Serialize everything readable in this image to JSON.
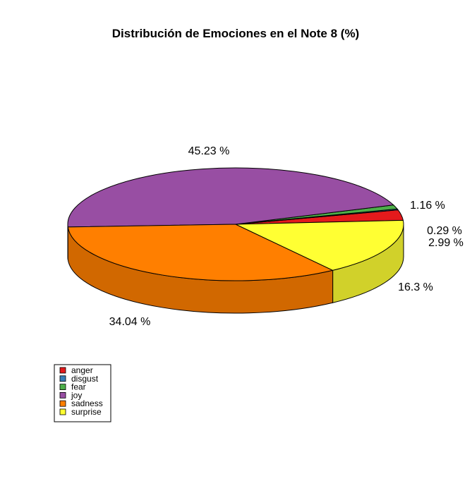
{
  "chart_data": {
    "type": "pie",
    "style": "3d",
    "title": "Distribución de Emociones en el Note 8 (%)",
    "slices": [
      {
        "label": "anger",
        "value": 2.99,
        "display": "2.99 %",
        "color": "#e41a1c"
      },
      {
        "label": "disgust",
        "value": 0.29,
        "display": "0.29 %",
        "color": "#377eb8"
      },
      {
        "label": "fear",
        "value": 1.16,
        "display": "1.16 %",
        "color": "#4daf4a"
      },
      {
        "label": "joy",
        "value": 45.23,
        "display": "45.23 %",
        "color": "#984ea3"
      },
      {
        "label": "sadness",
        "value": 34.04,
        "display": "34.04 %",
        "color": "#ff7f00"
      },
      {
        "label": "surprise",
        "value": 16.3,
        "display": "16.3 %",
        "color": "#ffff33"
      }
    ],
    "legend": {
      "placement": "bottom-left",
      "items": [
        "anger",
        "disgust",
        "fear",
        "joy",
        "sadness",
        "surprise"
      ]
    }
  }
}
